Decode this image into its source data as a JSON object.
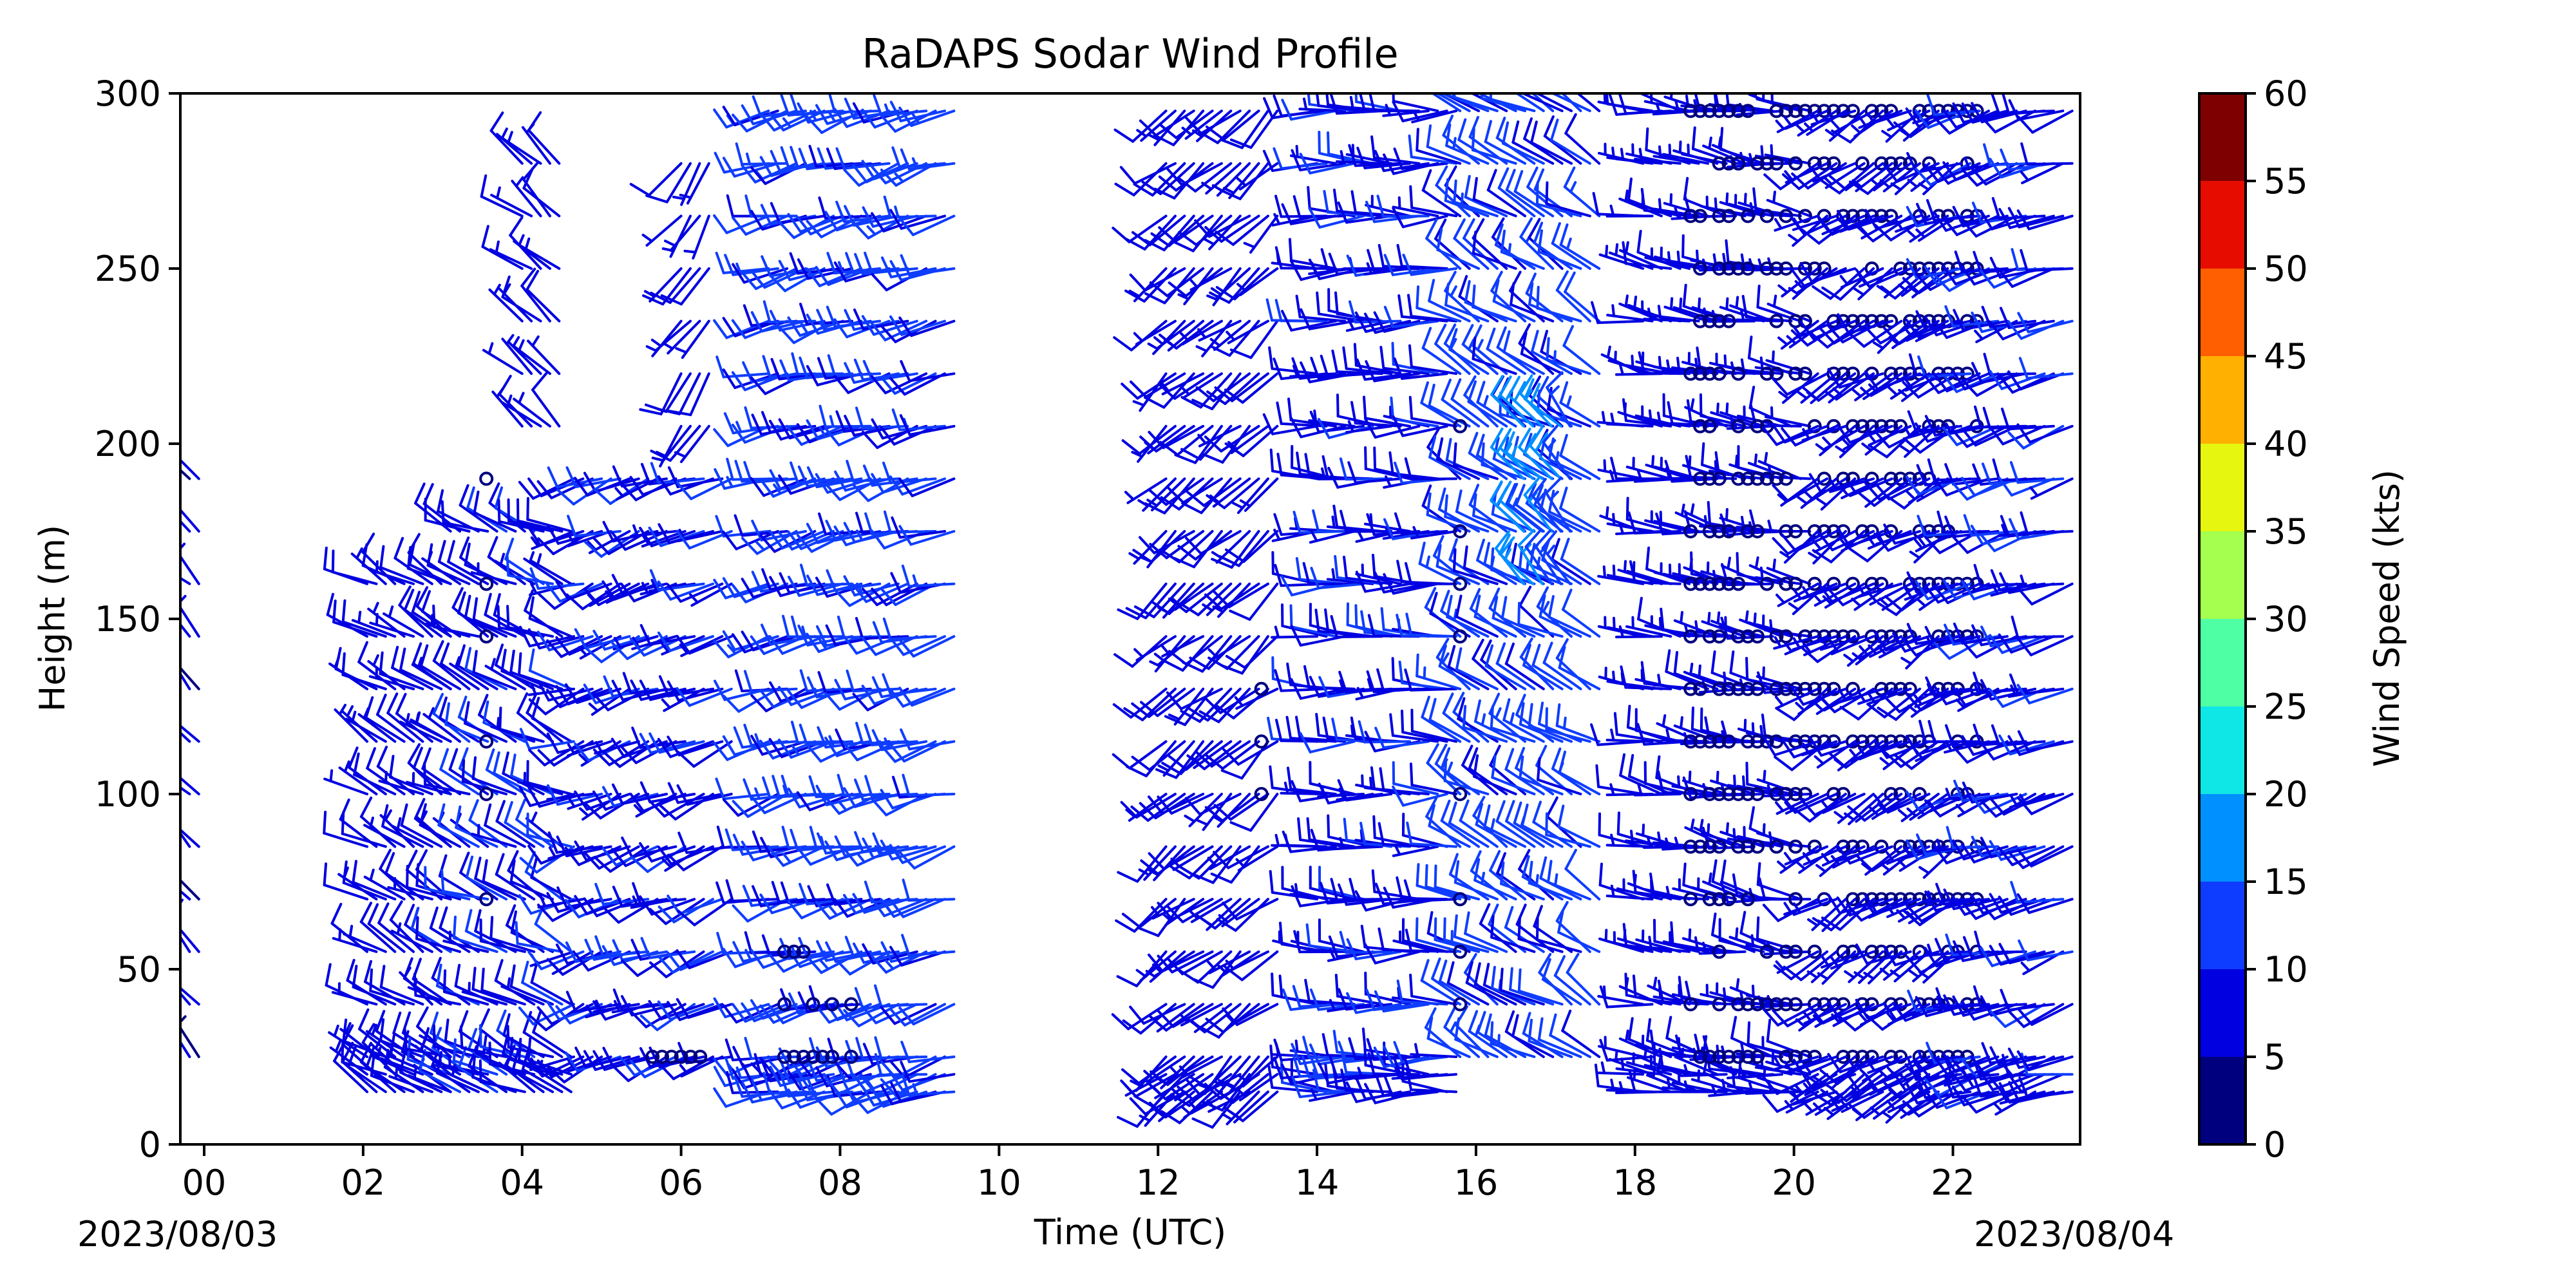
{
  "chart_data": {
    "type": "wind_barbs",
    "title": "RaDAPS Sodar Wind Profile",
    "xlabel": "Time (UTC)",
    "ylabel": "Height (m)",
    "xlim": [
      -0.3,
      23.6
    ],
    "ylim": [
      0,
      300
    ],
    "x_ticks": [
      0,
      2,
      4,
      6,
      8,
      10,
      12,
      14,
      16,
      18,
      20,
      22
    ],
    "x_tick_labels": [
      "00",
      "02",
      "04",
      "06",
      "08",
      "10",
      "12",
      "14",
      "16",
      "18",
      "20",
      "22"
    ],
    "y_ticks": [
      0,
      50,
      100,
      150,
      200,
      250,
      300
    ],
    "y_tick_labels": [
      "0",
      "50",
      "100",
      "150",
      "200",
      "250",
      "300"
    ],
    "start_date": "2023/08/03",
    "end_date": "2023/08/04",
    "grid": false,
    "colorbar": {
      "label": "Wind Speed (kts)",
      "bounds": [
        0,
        5,
        10,
        15,
        20,
        25,
        30,
        35,
        40,
        45,
        50,
        55,
        60
      ],
      "tick_labels": [
        "0",
        "5",
        "10",
        "15",
        "20",
        "25",
        "30",
        "35",
        "40",
        "45",
        "50",
        "55",
        "60"
      ],
      "colors": [
        "#00007f",
        "#0000e1",
        "#0f3dff",
        "#0090ff",
        "#0fe6e6",
        "#4fffa4",
        "#a4ff4f",
        "#e6f60f",
        "#ffb000",
        "#ff5f00",
        "#e60d00",
        "#7f0000"
      ]
    },
    "segments": [
      {
        "t_start": -0.3,
        "t_end": -0.05,
        "h_min": 25,
        "h_max": 195,
        "dir": 315,
        "speed": 6,
        "calm": false
      },
      {
        "t_start": 2.05,
        "t_end": 3.1,
        "h_min": 15,
        "h_max": 160,
        "dir": 300,
        "speed": 8,
        "calm": false
      },
      {
        "t_start": 3.1,
        "t_end": 4.65,
        "h_min": 15,
        "h_max": 180,
        "dir": 295,
        "speed": 9,
        "calm": false
      },
      {
        "t_start": 3.55,
        "t_end": 3.6,
        "h_min": 70,
        "h_max": 190,
        "dir": 0,
        "speed": 0,
        "calm": true
      },
      {
        "t_start": 4.0,
        "t_end": 4.5,
        "h_min": 195,
        "h_max": 280,
        "dir": 310,
        "speed": 7,
        "calm": false
      },
      {
        "t_start": 4.65,
        "t_end": 6.7,
        "h_min": 25,
        "h_max": 200,
        "dir": 250,
        "speed": 9,
        "calm": false
      },
      {
        "t_start": 5.4,
        "t_end": 6.3,
        "h_min": 25,
        "h_max": 25,
        "dir": 0,
        "speed": 0,
        "calm": true
      },
      {
        "t_start": 6.0,
        "t_end": 6.4,
        "h_min": 205,
        "h_max": 290,
        "dir": 215,
        "speed": 7,
        "calm": false
      },
      {
        "t_start": 7.1,
        "t_end": 9.5,
        "h_min": 15,
        "h_max": 300,
        "dir": 255,
        "speed": 11,
        "calm": false
      },
      {
        "t_start": 7.3,
        "t_end": 8.2,
        "h_min": 25,
        "h_max": 55,
        "dir": 0,
        "speed": 0,
        "calm": true
      },
      {
        "t_start": 12.1,
        "t_end": 13.6,
        "h_min": 15,
        "h_max": 295,
        "dir": 230,
        "speed": 8,
        "calm": false
      },
      {
        "t_start": 13.3,
        "t_end": 13.4,
        "h_min": 100,
        "h_max": 130,
        "dir": 0,
        "speed": 0,
        "calm": true
      },
      {
        "t_start": 14.0,
        "t_end": 15.8,
        "h_min": 15,
        "h_max": 300,
        "dir": 270,
        "speed": 9,
        "calm": false
      },
      {
        "t_start": 15.8,
        "t_end": 17.6,
        "h_min": 25,
        "h_max": 300,
        "dir": 300,
        "speed": 11,
        "calm": false
      },
      {
        "t_start": 16.6,
        "t_end": 17.2,
        "h_min": 160,
        "h_max": 215,
        "dir": 320,
        "speed": 16,
        "calm": false
      },
      {
        "t_start": 15.8,
        "t_end": 15.9,
        "h_min": 25,
        "h_max": 205,
        "dir": 0,
        "speed": 0,
        "calm": true
      },
      {
        "t_start": 18.1,
        "t_end": 20.3,
        "h_min": 15,
        "h_max": 295,
        "dir": 280,
        "speed": 7,
        "calm": false
      },
      {
        "t_start": 18.7,
        "t_end": 22.3,
        "h_min": 25,
        "h_max": 295,
        "dir": 0,
        "speed": 0,
        "calm": true
      },
      {
        "t_start": 20.3,
        "t_end": 22.1,
        "h_min": 15,
        "h_max": 300,
        "dir": 240,
        "speed": 7,
        "calm": false
      },
      {
        "t_start": 22.1,
        "t_end": 23.6,
        "h_min": 15,
        "h_max": 300,
        "dir": 255,
        "speed": 9,
        "calm": false
      }
    ]
  }
}
